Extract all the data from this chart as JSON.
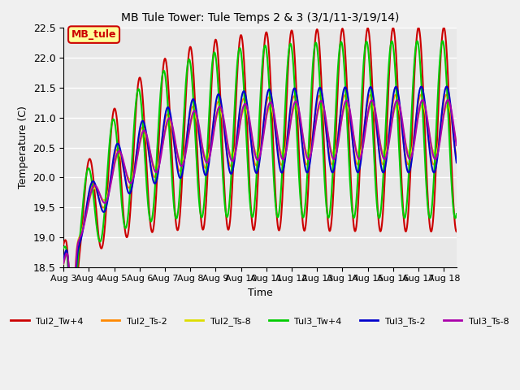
{
  "title": "MB Tule Tower: Tule Temps 2 & 3 (3/1/11-3/19/14)",
  "xlabel": "Time",
  "ylabel": "Temperature (C)",
  "ylim": [
    18.5,
    22.5
  ],
  "xlim": [
    0,
    15.5
  ],
  "x_tick_labels": [
    "Aug 3",
    "Aug 4",
    "Aug 5",
    "Aug 6",
    "Aug 7",
    "Aug 8",
    "Aug 9",
    "Aug 10",
    "Aug 11",
    "Aug 12",
    "Aug 13",
    "Aug 14",
    "Aug 15",
    "Aug 16",
    "Aug 17",
    "Aug 18"
  ],
  "legend_label": "MB_tule",
  "series": [
    {
      "name": "Tul2_Tw+4",
      "color": "#cc0000",
      "lw": 1.5
    },
    {
      "name": "Tul2_Ts-2",
      "color": "#ff8800",
      "lw": 1.5
    },
    {
      "name": "Tul2_Ts-8",
      "color": "#dddd00",
      "lw": 1.5
    },
    {
      "name": "Tul3_Tw+4",
      "color": "#00cc00",
      "lw": 1.5
    },
    {
      "name": "Tul3_Ts-2",
      "color": "#0000cc",
      "lw": 1.5
    },
    {
      "name": "Tul3_Ts-8",
      "color": "#aa00aa",
      "lw": 1.5
    }
  ],
  "bg_color": "#e8e8e8",
  "grid_color": "#ffffff",
  "annotation_box_color": "#ffff99",
  "annotation_box_edge": "#cc0000"
}
